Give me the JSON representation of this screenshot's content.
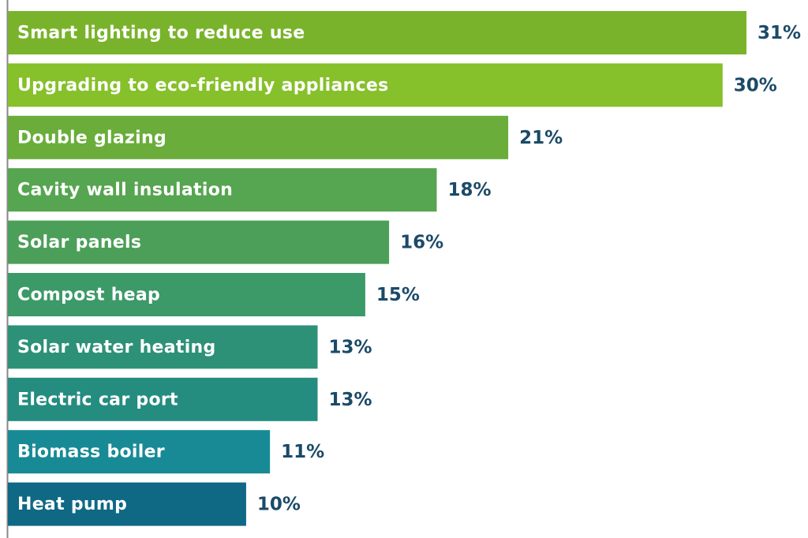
{
  "chart_data": {
    "type": "hbar",
    "categories": [
      "Smart lighting to reduce use",
      "Upgrading to eco-friendly appliances",
      "Double glazing",
      "Cavity wall insulation",
      "Solar panels",
      "Compost heap",
      "Solar water heating",
      "Electric car port",
      "Biomass boiler",
      "Heat pump"
    ],
    "values": [
      31,
      30,
      21,
      18,
      16,
      15,
      13,
      13,
      11,
      10
    ],
    "value_labels": [
      "31%",
      "30%",
      "21%",
      "18%",
      "16%",
      "15%",
      "13%",
      "13%",
      "11%",
      "10%"
    ],
    "colors": [
      "#79b32b",
      "#86c02a",
      "#6aad3b",
      "#56a550",
      "#4c9f58",
      "#3c9968",
      "#2d9177",
      "#258c80",
      "#188a95",
      "#0f6884"
    ],
    "label_color": "#1b4a68"
  }
}
